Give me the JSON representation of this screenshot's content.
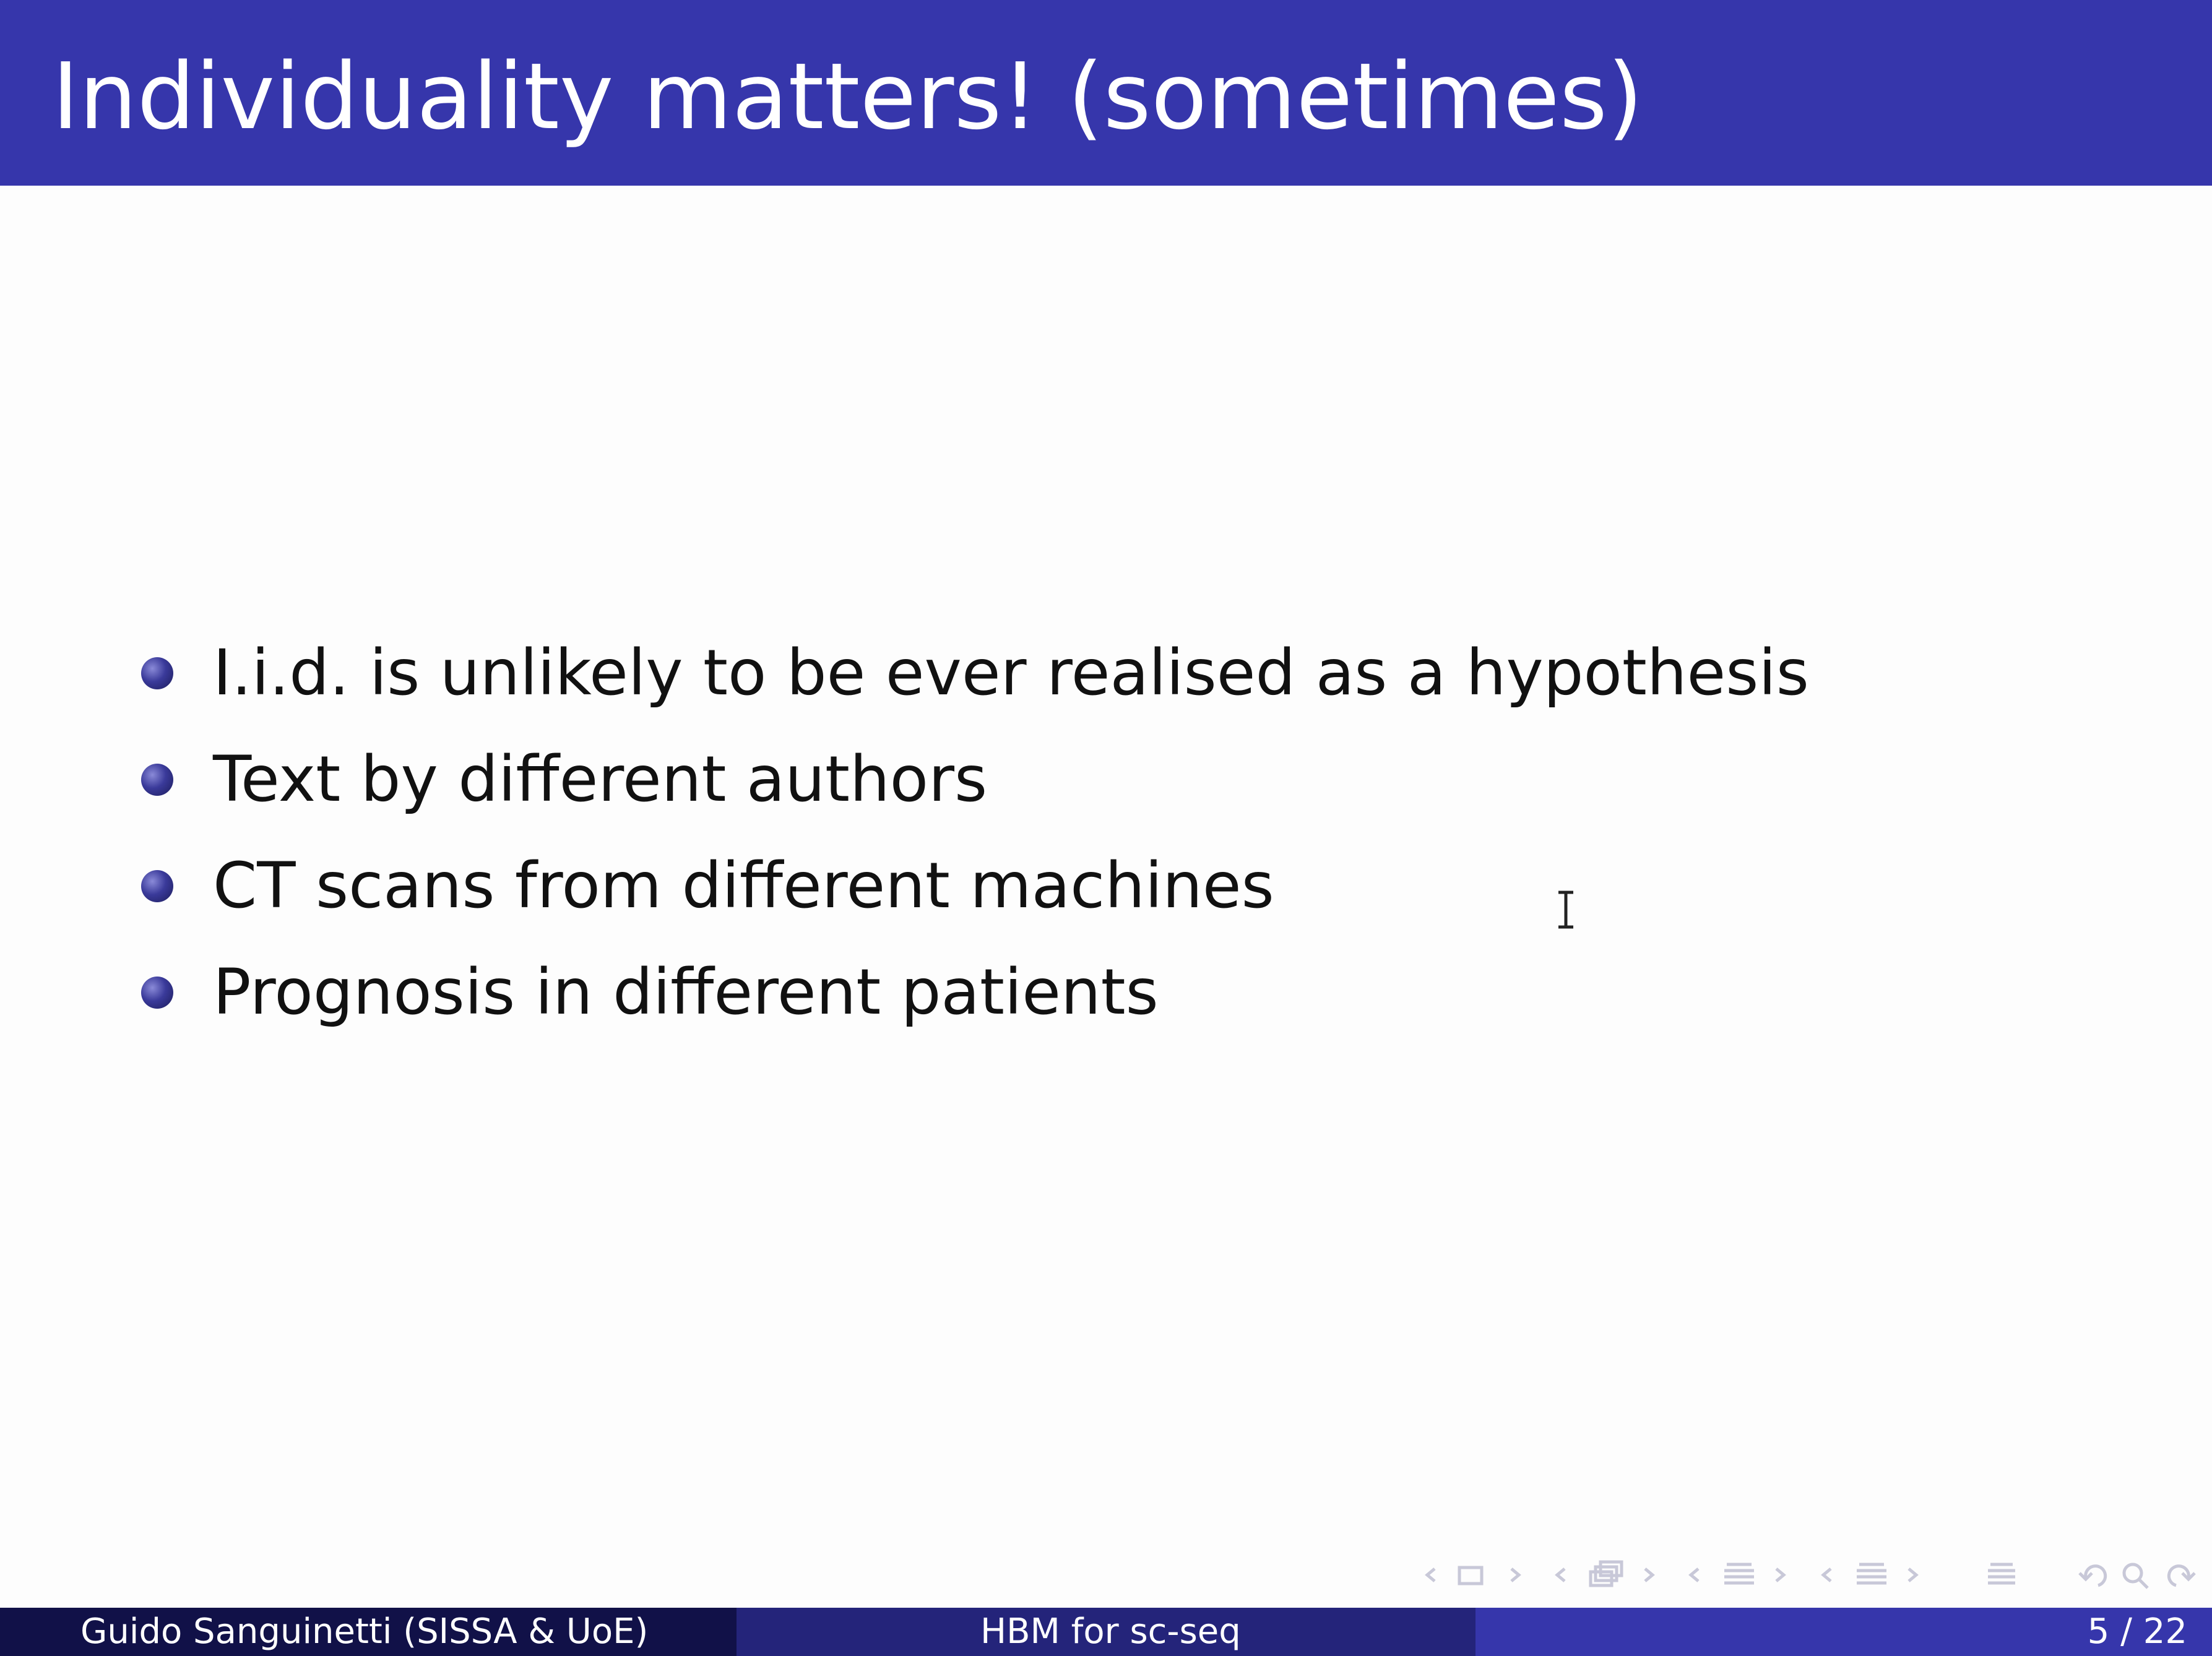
{
  "slide": {
    "title": "Individuality matters!  (sometimes)",
    "bullets": [
      "I.i.d.  is unlikely to be ever realised as a hypothesis",
      "Text by different authors",
      "CT scans from different machines",
      "Prognosis in different patients"
    ]
  },
  "footer": {
    "author": "Guido Sanguinetti  (SISSA & UoE)",
    "short_title": "HBM for sc-seq",
    "page": "5 / 22"
  },
  "nav_icons": [
    "frame-prev-icon",
    "frame-icon",
    "frame-next-icon",
    "subsection-prev-icon",
    "subsection-icon",
    "subsection-next-icon",
    "section-prev-icon",
    "section-icon",
    "section-next-icon",
    "doc-prev-icon",
    "doc-icon",
    "doc-next-icon",
    "toc-icon",
    "back-icon",
    "search-icon",
    "forward-icon"
  ]
}
